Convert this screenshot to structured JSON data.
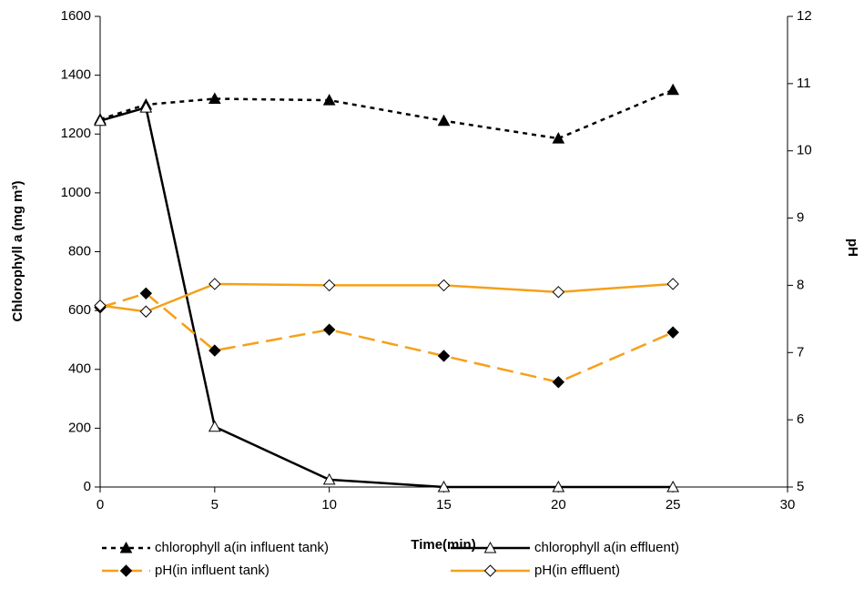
{
  "chart_data": {
    "type": "line",
    "x_label": "Time(min)",
    "y_label": "Chlorophyll a (mg m³)",
    "y2_label": "pH",
    "x": [
      0,
      2,
      5,
      10,
      15,
      20,
      25
    ],
    "xlim": [
      0,
      30
    ],
    "xticks": [
      0,
      5,
      10,
      15,
      20,
      25,
      30
    ],
    "ylim": [
      0,
      1600
    ],
    "yticks": [
      0,
      200,
      400,
      600,
      800,
      1000,
      1200,
      1400,
      1600
    ],
    "y2lim": [
      5,
      12
    ],
    "y2ticks": [
      5,
      6,
      7,
      8,
      9,
      10,
      11,
      12
    ],
    "grid": false,
    "series": [
      {
        "name": "chlorophyll a(in influent tank)",
        "color": "#000000",
        "line_style": "dashed",
        "marker": "triangle",
        "marker_filled": true,
        "values": [
          1250,
          1300,
          1320,
          1315,
          1245,
          1185,
          1350
        ]
      },
      {
        "name": "chlorophyll a(in effluent)",
        "color": "#000000",
        "line_style": "solid",
        "marker": "triangle",
        "marker_filled": false,
        "values": [
          1245,
          1290,
          205,
          25,
          0,
          0,
          0
        ]
      },
      {
        "name": "pH(in influent tank)",
        "color": "#f5a01a",
        "line_style": "dashed",
        "marker": "diamond",
        "marker_filled": true,
        "axis": "y2",
        "values": [
          7.67,
          7.88,
          7.03,
          7.34,
          6.95,
          6.56,
          7.3
        ]
      },
      {
        "name": "pH(in effluent)",
        "color": "#f5a01a",
        "line_style": "solid",
        "marker": "diamond",
        "marker_filled": false,
        "axis": "y2",
        "values": [
          7.7,
          7.61,
          8.02,
          8.0,
          8.0,
          7.9,
          8.02
        ]
      }
    ]
  }
}
